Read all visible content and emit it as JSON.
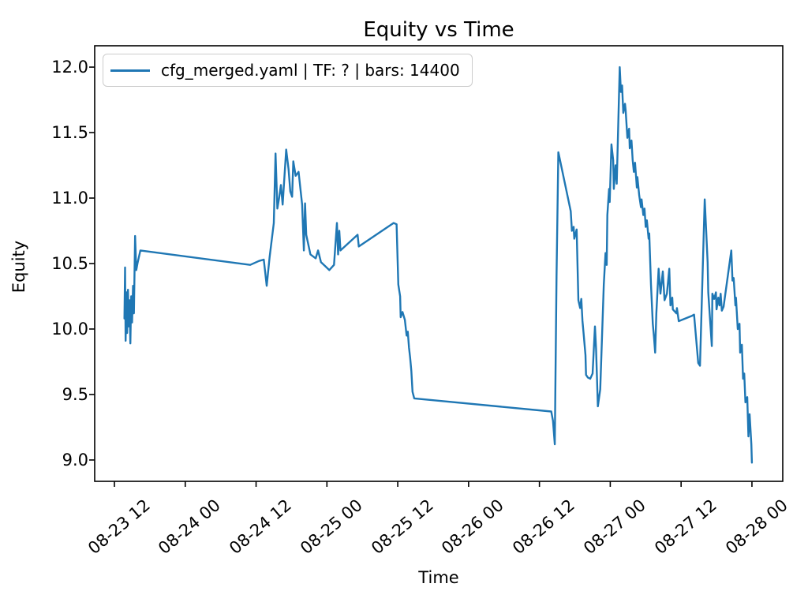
{
  "figure": {
    "title": "Equity vs Time",
    "xlabel": "Time",
    "ylabel": "Equity",
    "legend": {
      "label": "cfg_merged.yaml | TF: ? | bars: 14400",
      "position": "upper left"
    }
  },
  "colors": {
    "line": "#1f77b4",
    "axes": "#000000",
    "legend_border": "#cccccc",
    "background": "#ffffff"
  },
  "chart_data": {
    "type": "line",
    "title": "Equity vs Time",
    "xlabel": "Time",
    "ylabel": "Equity",
    "grid": false,
    "legend_position": "upper left",
    "x_unit": "hours since 08-23 00:00",
    "xlim_hours": [
      8.66,
      125.22
    ],
    "ylim": [
      8.837,
      12.163
    ],
    "y_ticks": [
      9.0,
      9.5,
      10.0,
      10.5,
      11.0,
      11.5,
      12.0
    ],
    "x_ticks": [
      {
        "hour": 12,
        "label": "08-23 12"
      },
      {
        "hour": 24,
        "label": "08-24 00"
      },
      {
        "hour": 36,
        "label": "08-24 12"
      },
      {
        "hour": 48,
        "label": "08-25 00"
      },
      {
        "hour": 60,
        "label": "08-25 12"
      },
      {
        "hour": 72,
        "label": "08-26 00"
      },
      {
        "hour": 84,
        "label": "08-26 12"
      },
      {
        "hour": 96,
        "label": "08-27 00"
      },
      {
        "hour": 108,
        "label": "08-27 12"
      },
      {
        "hour": 120,
        "label": "08-28 00"
      }
    ],
    "series": [
      {
        "name": "cfg_merged.yaml | TF: ? | bars: 14400",
        "color": "#1f77b4",
        "points": [
          [
            13.7,
            10.08
          ],
          [
            13.8,
            10.47
          ],
          [
            13.9,
            9.91
          ],
          [
            14.05,
            10.28
          ],
          [
            14.15,
            9.97
          ],
          [
            14.3,
            10.3
          ],
          [
            14.45,
            10.02
          ],
          [
            14.55,
            10.22
          ],
          [
            14.7,
            9.89
          ],
          [
            14.85,
            10.25
          ],
          [
            15.0,
            10.05
          ],
          [
            15.15,
            10.33
          ],
          [
            15.3,
            10.12
          ],
          [
            15.5,
            10.71
          ],
          [
            15.7,
            10.45
          ],
          [
            15.9,
            10.5
          ],
          [
            16.4,
            10.6
          ],
          [
            35.0,
            10.49
          ],
          [
            36.5,
            10.52
          ],
          [
            37.3,
            10.53
          ],
          [
            37.8,
            10.33
          ],
          [
            38.3,
            10.55
          ],
          [
            39.0,
            10.81
          ],
          [
            39.3,
            11.34
          ],
          [
            39.6,
            10.92
          ],
          [
            39.9,
            11.0
          ],
          [
            40.2,
            11.1
          ],
          [
            40.5,
            10.95
          ],
          [
            41.1,
            11.37
          ],
          [
            41.5,
            11.22
          ],
          [
            41.8,
            11.05
          ],
          [
            42.1,
            11.01
          ],
          [
            42.3,
            11.28
          ],
          [
            42.7,
            11.17
          ],
          [
            43.2,
            11.2
          ],
          [
            43.8,
            10.95
          ],
          [
            44.1,
            10.6
          ],
          [
            44.3,
            10.96
          ],
          [
            44.5,
            10.72
          ],
          [
            45.2,
            10.57
          ],
          [
            46.1,
            10.54
          ],
          [
            46.5,
            10.6
          ],
          [
            47.0,
            10.51
          ],
          [
            47.7,
            10.48
          ],
          [
            48.4,
            10.45
          ],
          [
            49.2,
            10.49
          ],
          [
            49.7,
            10.81
          ],
          [
            49.9,
            10.57
          ],
          [
            50.1,
            10.75
          ],
          [
            50.3,
            10.6
          ],
          [
            53.2,
            10.72
          ],
          [
            53.4,
            10.63
          ],
          [
            59.3,
            10.81
          ],
          [
            59.8,
            10.8
          ],
          [
            60.1,
            10.34
          ],
          [
            60.4,
            10.25
          ],
          [
            60.5,
            10.09
          ],
          [
            60.8,
            10.13
          ],
          [
            61.2,
            10.07
          ],
          [
            61.5,
            9.95
          ],
          [
            61.7,
            9.98
          ],
          [
            61.9,
            9.86
          ],
          [
            62.1,
            9.78
          ],
          [
            62.3,
            9.68
          ],
          [
            62.5,
            9.52
          ],
          [
            62.8,
            9.47
          ],
          [
            86.0,
            9.37
          ],
          [
            86.3,
            9.3
          ],
          [
            86.6,
            9.12
          ],
          [
            86.9,
            10.4
          ],
          [
            87.2,
            11.35
          ],
          [
            89.3,
            10.9
          ],
          [
            89.5,
            10.75
          ],
          [
            89.8,
            10.78
          ],
          [
            89.9,
            10.69
          ],
          [
            90.3,
            10.76
          ],
          [
            90.6,
            10.22
          ],
          [
            90.9,
            10.16
          ],
          [
            91.1,
            10.23
          ],
          [
            91.3,
            10.06
          ],
          [
            91.5,
            9.96
          ],
          [
            91.8,
            9.8
          ],
          [
            91.9,
            9.65
          ],
          [
            92.2,
            9.63
          ],
          [
            92.6,
            9.62
          ],
          [
            93.0,
            9.66
          ],
          [
            93.4,
            10.02
          ],
          [
            93.6,
            9.85
          ],
          [
            93.9,
            9.41
          ],
          [
            94.3,
            9.54
          ],
          [
            94.9,
            10.34
          ],
          [
            95.2,
            10.58
          ],
          [
            95.4,
            10.49
          ],
          [
            95.5,
            10.87
          ],
          [
            95.8,
            11.07
          ],
          [
            95.9,
            10.97
          ],
          [
            96.2,
            11.41
          ],
          [
            96.5,
            11.29
          ],
          [
            96.6,
            11.07
          ],
          [
            96.9,
            11.25
          ],
          [
            97.1,
            11.11
          ],
          [
            97.6,
            12.0
          ],
          [
            97.8,
            11.81
          ],
          [
            98.0,
            11.86
          ],
          [
            98.2,
            11.65
          ],
          [
            98.5,
            11.72
          ],
          [
            98.6,
            11.67
          ],
          [
            98.9,
            11.46
          ],
          [
            99.0,
            11.49
          ],
          [
            99.2,
            11.53
          ],
          [
            99.3,
            11.38
          ],
          [
            99.6,
            11.44
          ],
          [
            99.8,
            11.29
          ],
          [
            100.0,
            11.2
          ],
          [
            100.2,
            11.27
          ],
          [
            100.5,
            11.08
          ],
          [
            100.6,
            11.16
          ],
          [
            100.9,
            11.02
          ],
          [
            101.2,
            10.93
          ],
          [
            101.3,
            10.99
          ],
          [
            101.6,
            10.87
          ],
          [
            101.8,
            10.92
          ],
          [
            102.0,
            10.78
          ],
          [
            102.2,
            10.83
          ],
          [
            102.5,
            10.69
          ],
          [
            102.6,
            10.73
          ],
          [
            102.9,
            10.34
          ],
          [
            103.2,
            10.04
          ],
          [
            103.4,
            9.94
          ],
          [
            103.6,
            9.82
          ],
          [
            103.8,
            10.12
          ],
          [
            104.2,
            10.46
          ],
          [
            104.5,
            10.27
          ],
          [
            104.9,
            10.44
          ],
          [
            105.2,
            10.22
          ],
          [
            105.6,
            10.27
          ],
          [
            106.0,
            10.46
          ],
          [
            106.2,
            10.18
          ],
          [
            106.5,
            10.24
          ],
          [
            106.6,
            10.15
          ],
          [
            107.2,
            10.12
          ],
          [
            107.3,
            10.16
          ],
          [
            107.6,
            10.06
          ],
          [
            109.8,
            10.1
          ],
          [
            110.2,
            10.11
          ],
          [
            110.9,
            9.74
          ],
          [
            111.2,
            9.72
          ],
          [
            112.0,
            10.99
          ],
          [
            112.5,
            10.51
          ],
          [
            112.6,
            10.28
          ],
          [
            113.2,
            9.87
          ],
          [
            113.3,
            10.27
          ],
          [
            113.6,
            10.23
          ],
          [
            113.9,
            10.28
          ],
          [
            114.0,
            10.15
          ],
          [
            114.3,
            10.24
          ],
          [
            114.5,
            10.18
          ],
          [
            114.7,
            10.27
          ],
          [
            114.9,
            10.14
          ],
          [
            115.2,
            10.17
          ],
          [
            116.5,
            10.6
          ],
          [
            116.7,
            10.37
          ],
          [
            116.9,
            10.39
          ],
          [
            117.2,
            10.18
          ],
          [
            117.3,
            10.24
          ],
          [
            117.6,
            10.0
          ],
          [
            117.9,
            10.04
          ],
          [
            118.0,
            9.82
          ],
          [
            118.3,
            9.88
          ],
          [
            118.5,
            9.62
          ],
          [
            118.7,
            9.66
          ],
          [
            118.9,
            9.44
          ],
          [
            119.2,
            9.48
          ],
          [
            119.4,
            9.18
          ],
          [
            119.6,
            9.35
          ],
          [
            119.9,
            9.12
          ],
          [
            120.0,
            8.98
          ]
        ]
      }
    ]
  }
}
